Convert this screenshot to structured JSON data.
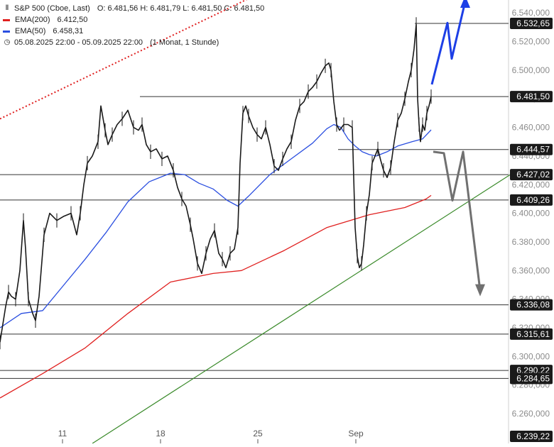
{
  "header": {
    "symbol": "S&P 500 (Cboe, Last)",
    "ohlc": "O: 6.481,56   H: 6.481,79   L: 6.481,50   C: 6.481,50",
    "ema200_label": "EMA(200)",
    "ema200_value": "6.412,50",
    "ema50_label": "EMA(50)",
    "ema50_value": "6.458,31",
    "range": "05.08.2025 22:00 - 05.09.2025 22:00",
    "period": "(1 Monat, 1 Stunde)"
  },
  "colors": {
    "ema200": "#e0201f",
    "ema50": "#2a4ee0",
    "trendline": "#3a8a2a",
    "upper_trend": "#e02020",
    "bull_arrow": "#1d3fe6",
    "bear_arrow": "#707070",
    "candle": "#1a1a1a",
    "level_line": "#333333",
    "label_bg": "#1a1a1a",
    "axis_text": "#8c8c8c"
  },
  "chart_data": {
    "type": "line",
    "title": "S&P 500 (Cboe, Last)",
    "xlabel": "",
    "ylabel": "",
    "ylim": [
      6239.22,
      6549.0
    ],
    "y_ticks": [
      6540,
      6520,
      6500,
      6480,
      6460,
      6440,
      6420,
      6400,
      6380,
      6360,
      6340,
      6320,
      6300,
      6280,
      6260
    ],
    "x_ticks": [
      {
        "label": "11",
        "i": 88
      },
      {
        "label": "18",
        "i": 226
      },
      {
        "label": "25",
        "i": 363
      },
      {
        "label": "Sep",
        "i": 501
      }
    ],
    "last_price": 6481.5,
    "price_levels": [
      6532.65,
      6481.5,
      6444.57,
      6427.02,
      6409.26,
      6336.08,
      6315.61,
      6290.22,
      6284.65,
      6239.22
    ],
    "price_level_labels": [
      "6.532,65",
      "6.481,50",
      "6.444,57",
      "6.427,02",
      "6.409,26",
      "6.336,08",
      "6.315,61",
      "6.290,22",
      "6.284,65",
      "6.239,22"
    ],
    "ema200_series": {
      "name": "EMA(200)",
      "x": [
        0,
        60,
        120,
        180,
        240,
        300,
        340,
        400,
        460,
        520,
        570,
        600,
        607
      ],
      "y": [
        6271,
        6288,
        6306,
        6330,
        6352,
        6358,
        6360,
        6374,
        6390,
        6399,
        6404,
        6410,
        6412.5
      ]
    },
    "ema50_series": {
      "name": "EMA(50)",
      "x": [
        0,
        30,
        60,
        90,
        120,
        150,
        180,
        210,
        240,
        260,
        280,
        300,
        320,
        335,
        350,
        380,
        410,
        440,
        460,
        470,
        480,
        490,
        500,
        510,
        520,
        530,
        545,
        560,
        580,
        595,
        607
      ],
      "y": [
        6320,
        6330,
        6332,
        6350,
        6368,
        6387,
        6408,
        6422,
        6428,
        6427,
        6421,
        6417,
        6409,
        6405,
        6412,
        6427,
        6438,
        6449,
        6459,
        6462,
        6460,
        6452,
        6447,
        6443,
        6441,
        6440,
        6443,
        6447,
        6450,
        6452,
        6458.3
      ]
    },
    "trendlines": [
      {
        "x": [
          130,
          720
        ],
        "y": [
          6239.22,
          6427.5
        ]
      },
      {
        "x": [
          0,
          375
        ],
        "y": [
          6466,
          6556
        ]
      }
    ],
    "scenario_up": {
      "x": [
        608,
        630,
        636,
        655
      ],
      "y": [
        6490,
        6533,
        6508,
        6548
      ]
    },
    "scenario_down": {
      "x": [
        610,
        625,
        637,
        652,
        676
      ],
      "y": [
        6443,
        6442,
        6409,
        6443,
        6346
      ]
    },
    "price_line": {
      "x": [
        0,
        8,
        12,
        16,
        22,
        28,
        33,
        36,
        40,
        46,
        50,
        55,
        62,
        70,
        80,
        90,
        100,
        108,
        113,
        118,
        123,
        130,
        138,
        142,
        148,
        152,
        158,
        165,
        172,
        180,
        188,
        195,
        200,
        206,
        212,
        220,
        228,
        236,
        244,
        250,
        256,
        262,
        268,
        272,
        278,
        284,
        290,
        296,
        302,
        308,
        313,
        318,
        324,
        330,
        335,
        338,
        342,
        346,
        350,
        356,
        362,
        368,
        374,
        380,
        386,
        392,
        398,
        404,
        410,
        416,
        422,
        428,
        434,
        440,
        446,
        452,
        458,
        463,
        466,
        470,
        474,
        478,
        484,
        490,
        496,
        500,
        503,
        506,
        509,
        512,
        516,
        520,
        524,
        528,
        532,
        536,
        540,
        545,
        550,
        555,
        560,
        565,
        570,
        575,
        579,
        583,
        586,
        588,
        590,
        592,
        595,
        598,
        601,
        604,
        607
      ],
      "y": [
        6310,
        6335,
        6345,
        6342,
        6340,
        6360,
        6395,
        6375,
        6340,
        6330,
        6325,
        6342,
        6385,
        6400,
        6395,
        6398,
        6400,
        6385,
        6400,
        6420,
        6435,
        6440,
        6450,
        6475,
        6458,
        6448,
        6455,
        6462,
        6466,
        6472,
        6460,
        6458,
        6462,
        6448,
        6443,
        6445,
        6438,
        6440,
        6430,
        6418,
        6410,
        6405,
        6392,
        6382,
        6365,
        6358,
        6372,
        6382,
        6388,
        6372,
        6368,
        6362,
        6372,
        6375,
        6390,
        6435,
        6470,
        6475,
        6468,
        6460,
        6455,
        6452,
        6460,
        6448,
        6433,
        6430,
        6438,
        6445,
        6450,
        6465,
        6475,
        6478,
        6485,
        6488,
        6492,
        6498,
        6503,
        6505,
        6500,
        6478,
        6462,
        6458,
        6462,
        6462,
        6460,
        6390,
        6370,
        6362,
        6365,
        6378,
        6400,
        6413,
        6435,
        6440,
        6445,
        6437,
        6430,
        6425,
        6432,
        6450,
        6465,
        6470,
        6480,
        6492,
        6500,
        6515,
        6532,
        6480,
        6462,
        6450,
        6462,
        6458,
        6470,
        6475,
        6481.5
      ]
    }
  }
}
